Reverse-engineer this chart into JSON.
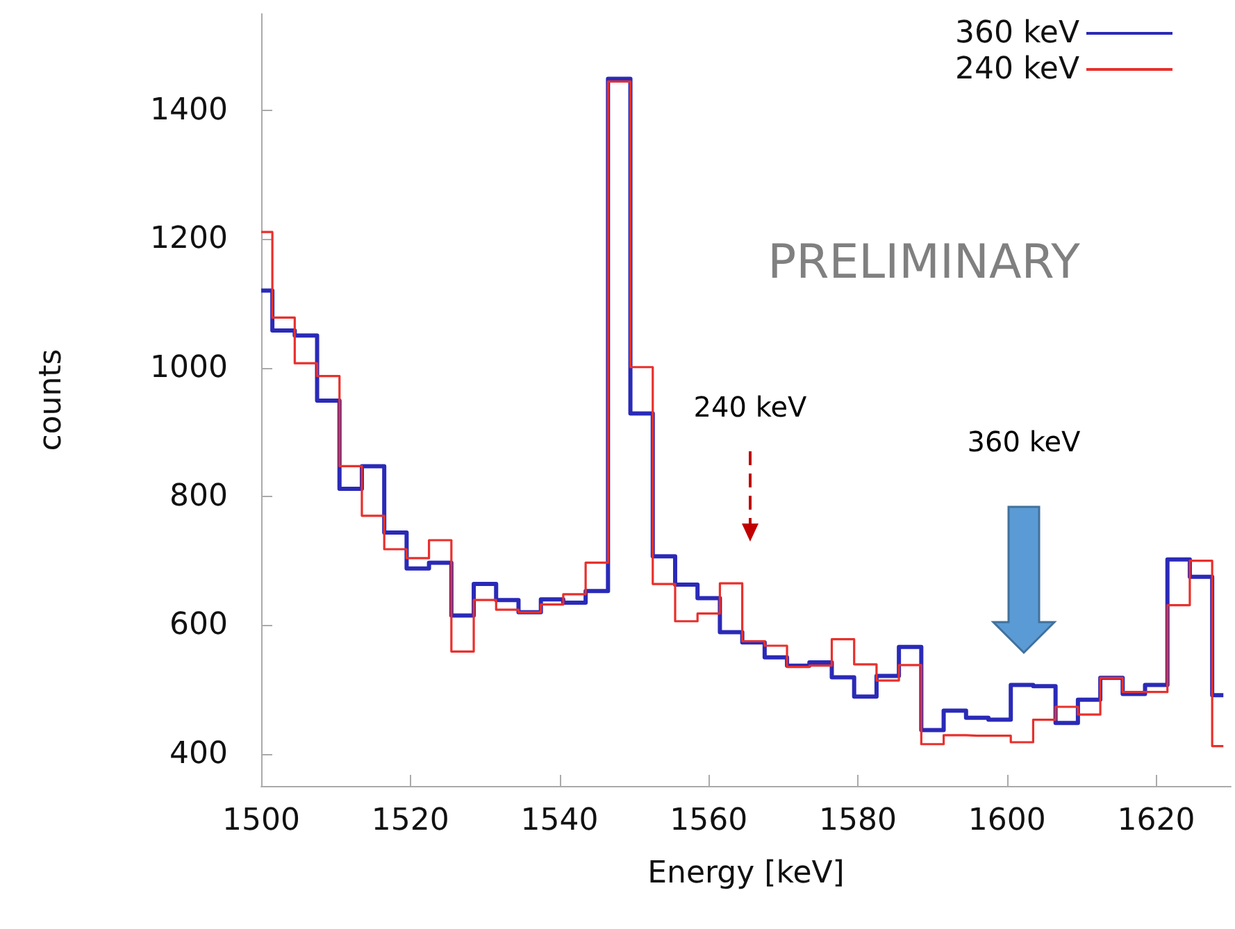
{
  "chart_data": {
    "type": "step",
    "xlabel": "Energy [keV]",
    "ylabel": "counts",
    "x": [
      1500,
      1503,
      1506,
      1509,
      1512,
      1515,
      1518,
      1521,
      1524,
      1527,
      1530,
      1533,
      1536,
      1539,
      1542,
      1545,
      1548,
      1551,
      1554,
      1557,
      1560,
      1563,
      1566,
      1569,
      1572,
      1575,
      1578,
      1581,
      1584,
      1587,
      1590,
      1593,
      1596,
      1599,
      1602,
      1605,
      1608,
      1611,
      1614,
      1617,
      1620,
      1623,
      1626,
      1629
    ],
    "series": [
      {
        "name": "360 keV",
        "color": "#2a2ab8",
        "values": [
          1120,
          1058,
          1050,
          949,
          812,
          847,
          744,
          688,
          697,
          615,
          664,
          639,
          620,
          640,
          635,
          653,
          1449,
          929,
          707,
          663,
          642,
          589,
          573,
          550,
          537,
          542,
          519,
          489,
          521,
          566,
          437,
          467,
          456,
          453,
          507,
          505,
          448,
          484,
          518,
          493,
          507,
          702,
          675,
          491
        ]
      },
      {
        "name": "240 keV",
        "color": "#e8302c",
        "values": [
          1211,
          1078,
          1007,
          987,
          847,
          770,
          718,
          704,
          732,
          559,
          639,
          624,
          620,
          632,
          648,
          697,
          1445,
          1001,
          664,
          606,
          618,
          665,
          575,
          568,
          535,
          537,
          578,
          539,
          514,
          538,
          415,
          429,
          428,
          428,
          418,
          453,
          473,
          461,
          518,
          496,
          496,
          631,
          700,
          412
        ]
      }
    ],
    "xlim": [
      1500,
      1630
    ],
    "xticks": [
      1500,
      1520,
      1540,
      1560,
      1580,
      1600,
      1620
    ],
    "ylim": [
      350,
      1550
    ],
    "yticks": [
      400,
      600,
      800,
      1000,
      1200,
      1400
    ],
    "legend": "top right",
    "grid": false,
    "annotations": [
      "PRELIMINARY",
      "240 keV",
      "360 keV"
    ]
  }
}
